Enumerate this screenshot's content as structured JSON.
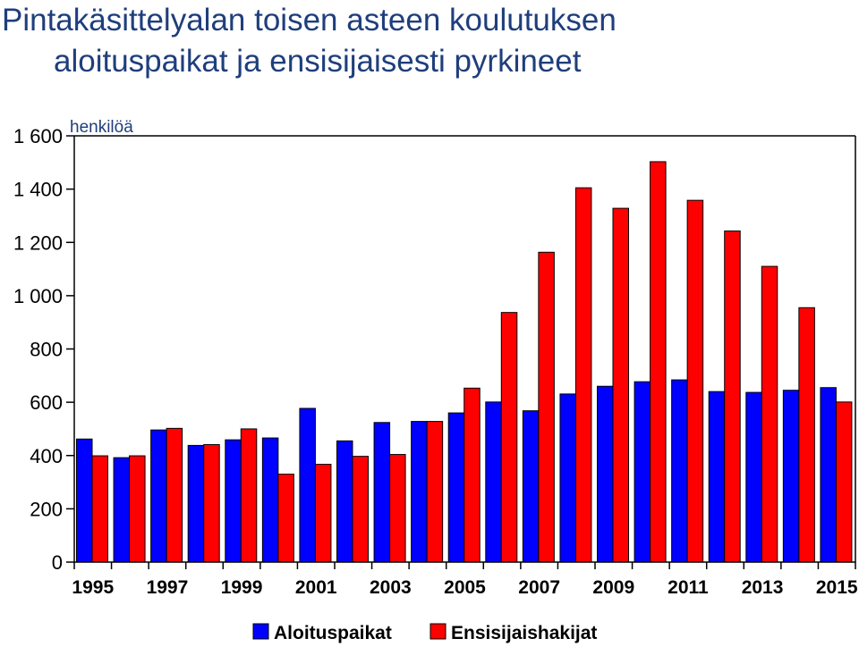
{
  "chart_data": {
    "type": "bar",
    "title_line1": "Pintakäsittelyalan toisen asteen koulutuksen",
    "title_line2": "aloituspaikat  ja ensisijaisesti pyrkineet",
    "ylabel": "henkilöä",
    "ylim": [
      0,
      1600
    ],
    "ytick_labels": [
      "0",
      "200",
      "400",
      "600",
      "800",
      "1 000",
      "1 200",
      "1 400",
      "1 600"
    ],
    "yticks": [
      0,
      200,
      400,
      600,
      800,
      1000,
      1200,
      1400,
      1600
    ],
    "categories": [
      "1995",
      "1996",
      "1997",
      "1998",
      "1999",
      "2000",
      "2001",
      "2002",
      "2003",
      "2004",
      "2005",
      "2006",
      "2007",
      "2008",
      "2009",
      "2010",
      "2011",
      "2012",
      "2013",
      "2014",
      "2015"
    ],
    "xtick_labels": [
      "1995",
      "1997",
      "1999",
      "2001",
      "2003",
      "2005",
      "2007",
      "2009",
      "2011",
      "2013",
      "2015"
    ],
    "series": [
      {
        "name": "Aloituspaikat",
        "color": "#0000ff",
        "values": [
          462,
          392,
          496,
          438,
          459,
          466,
          577,
          455,
          524,
          528,
          560,
          601,
          568,
          631,
          660,
          677,
          684,
          640,
          637,
          645,
          655
        ]
      },
      {
        "name": "Ensisijaishakijat",
        "color": "#ff0000",
        "values": [
          399,
          399,
          502,
          441,
          500,
          330,
          367,
          397,
          404,
          528,
          653,
          937,
          1163,
          1405,
          1328,
          1503,
          1358,
          1243,
          1110,
          955,
          601
        ]
      }
    ],
    "grid": false,
    "legend_position": "bottom-center"
  }
}
